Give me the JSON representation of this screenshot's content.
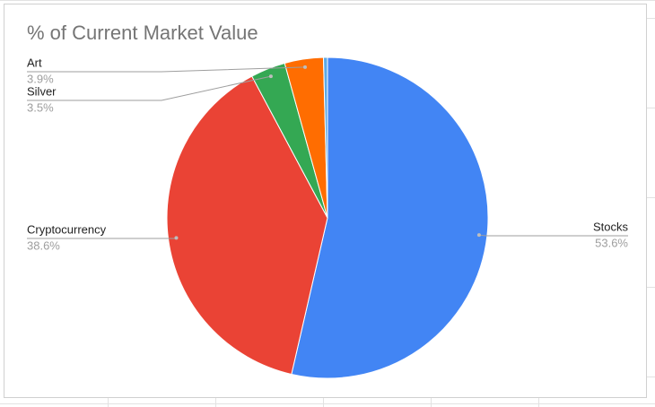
{
  "chart_data": {
    "type": "pie",
    "title": "% of Current Market Value",
    "categories": [
      "Stocks",
      "Cryptocurrency",
      "Silver",
      "Art",
      null
    ],
    "values": [
      53.6,
      38.6,
      3.5,
      3.9,
      0.4
    ],
    "value_labels": [
      "53.6%",
      "38.6%",
      "3.5%",
      "3.9%",
      null
    ],
    "colors": [
      "#4285f4",
      "#ea4335",
      "#34a853",
      "#ff6d01",
      "#5aa9e6"
    ]
  }
}
